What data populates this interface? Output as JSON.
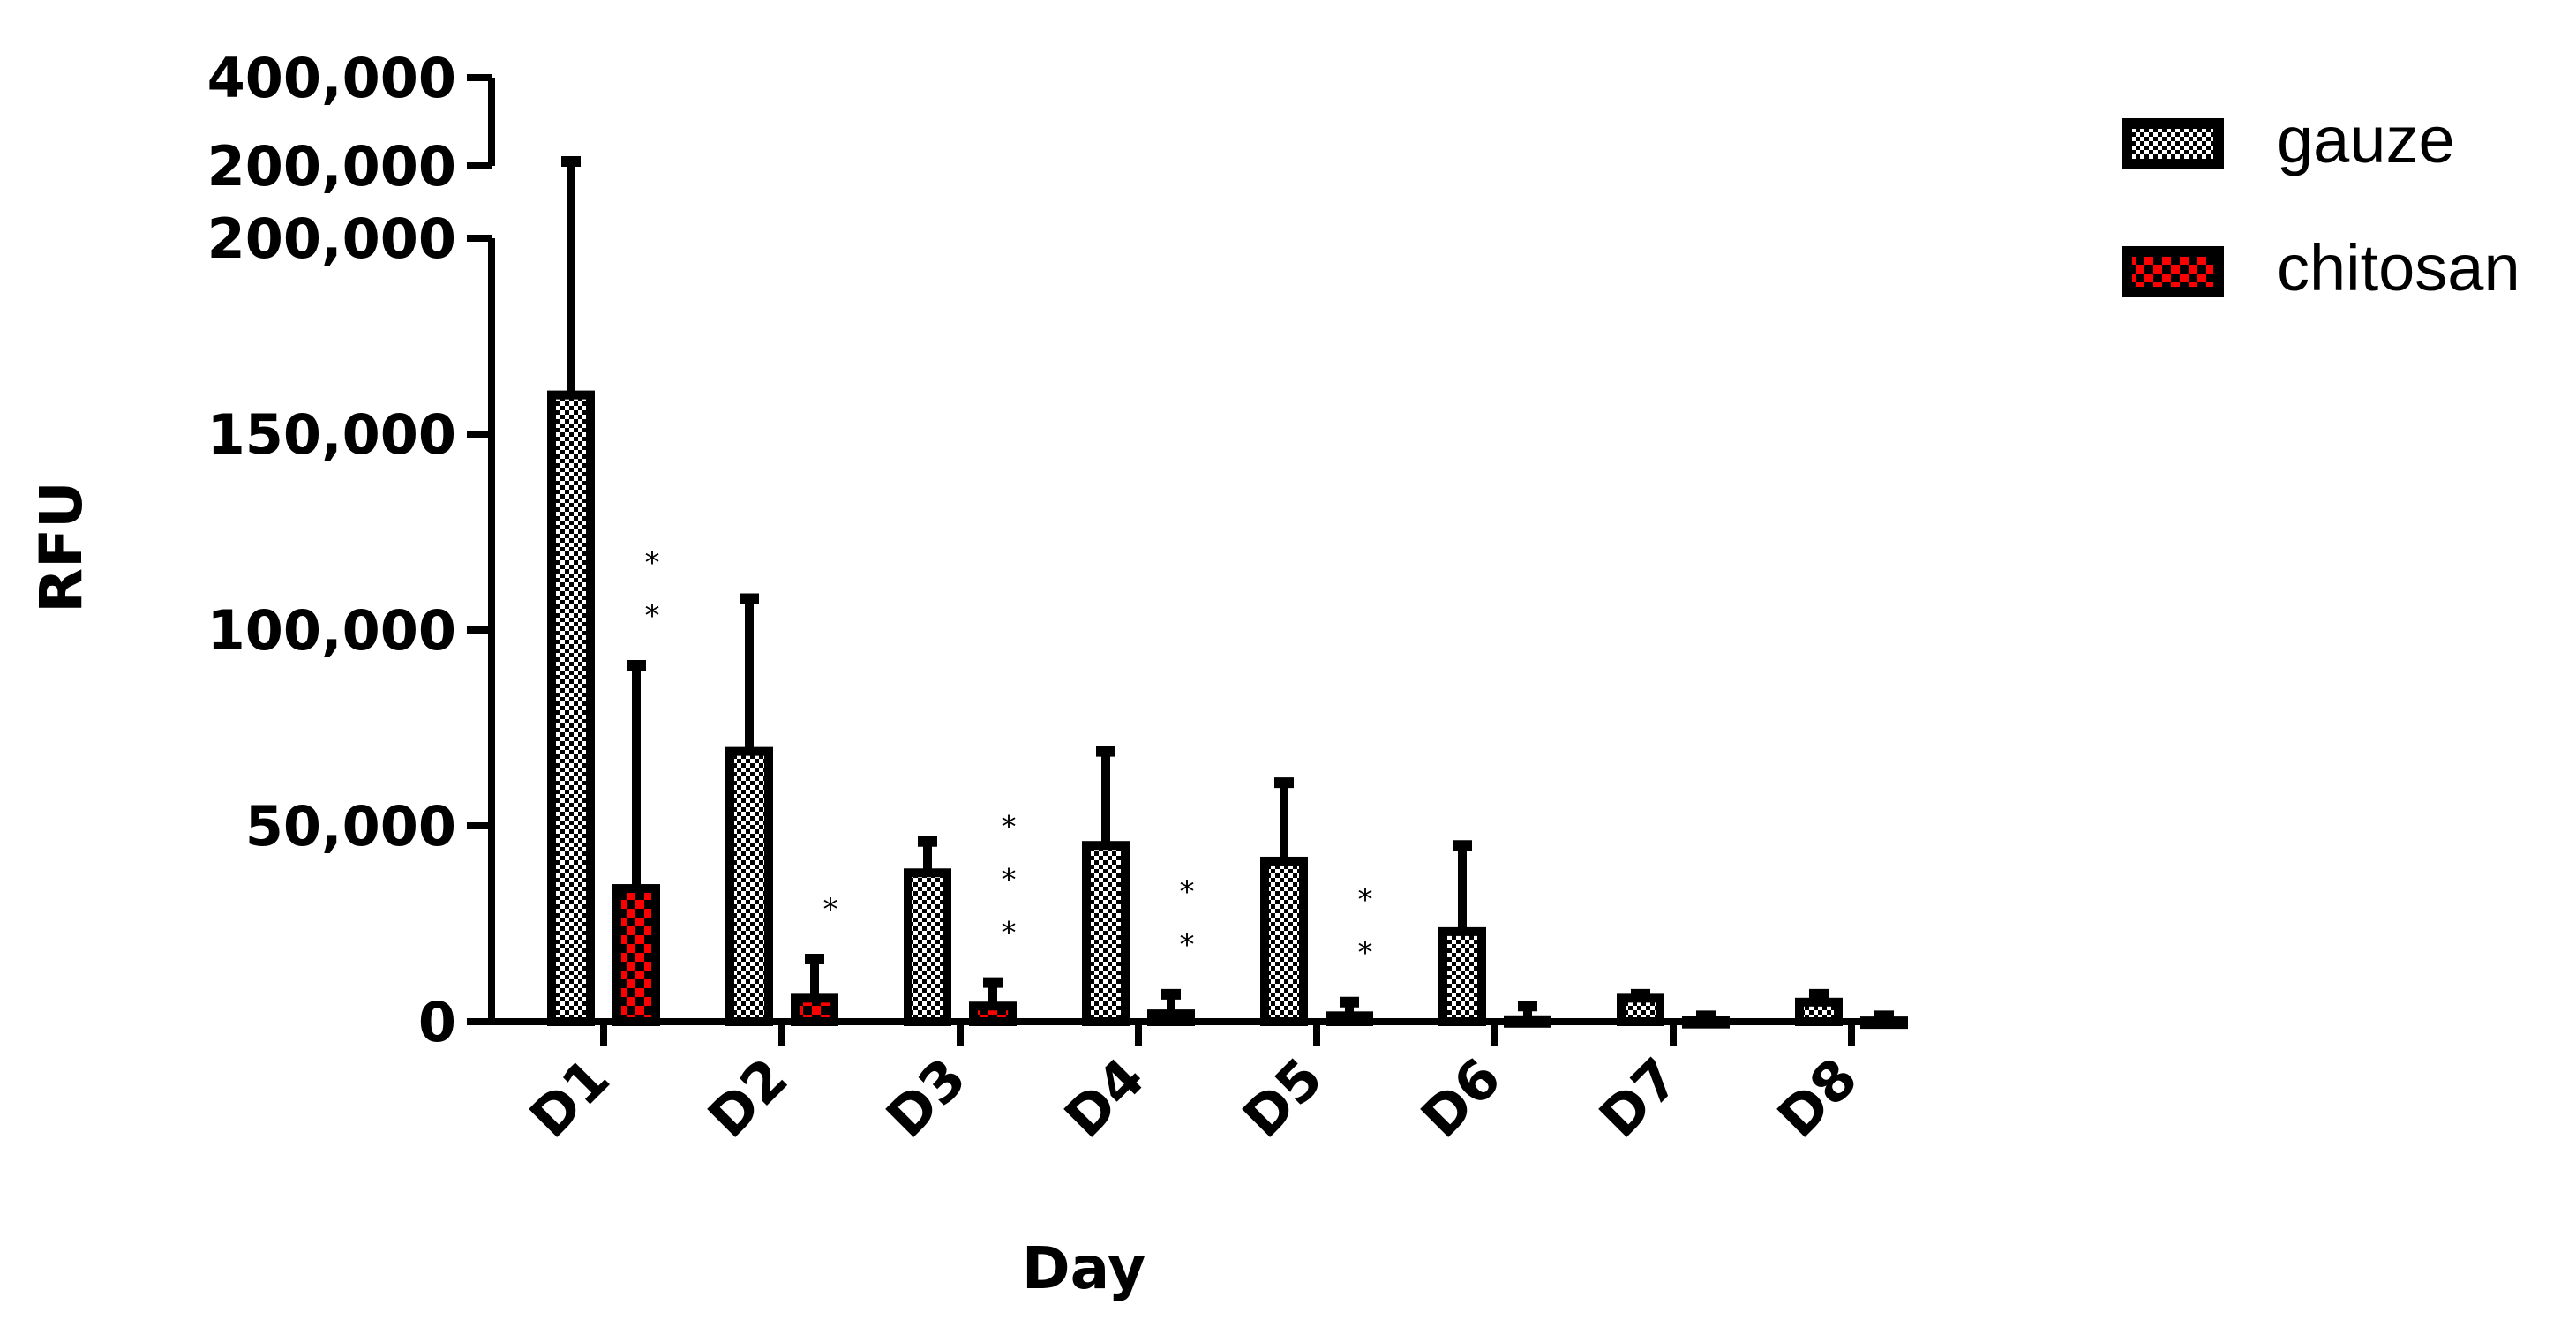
{
  "chart_data": {
    "type": "bar",
    "xlabel": "Day",
    "ylabel": "RFU",
    "categories": [
      "D1",
      "D2",
      "D3",
      "D4",
      "D5",
      "D6",
      "D7",
      "D8"
    ],
    "series": [
      {
        "name": "gauze",
        "values": [
          160000,
          69000,
          38000,
          45000,
          41000,
          23000,
          6000,
          5000
        ],
        "error": [
          210000,
          108000,
          46000,
          69000,
          61000,
          45000,
          7000,
          7000
        ],
        "pattern": "checker-white"
      },
      {
        "name": "chitosan",
        "values": [
          34000,
          6000,
          4000,
          2000,
          1500,
          500,
          300,
          200
        ],
        "error": [
          91000,
          16000,
          10000,
          7000,
          5000,
          4000,
          1500,
          1500
        ],
        "pattern": "checker-red"
      }
    ],
    "significance": [
      "**",
      "*",
      "***",
      "**",
      "**",
      "",
      "",
      ""
    ],
    "y_axis": {
      "lower_segment": {
        "ylim": [
          0,
          200000
        ],
        "ticks": [
          "0",
          "50,000",
          "100,000",
          "150,000",
          "200,000"
        ]
      },
      "upper_segment": {
        "ylim": [
          200000,
          400000
        ],
        "ticks": [
          "200,000",
          "400,000"
        ]
      }
    },
    "legend_position": "top-right",
    "grid": false,
    "colors": {
      "axis": "#000000",
      "bar_fill": "#000000",
      "gauze_pattern": "#ffffff",
      "chitosan_pattern": "#ff0000"
    }
  }
}
